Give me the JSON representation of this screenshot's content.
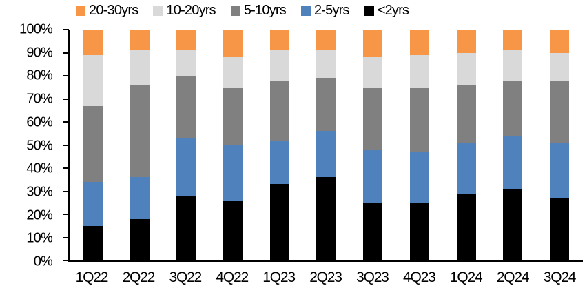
{
  "chart_data": {
    "type": "bar",
    "stacked": true,
    "stacked_mode": "percent",
    "title": "",
    "xlabel": "",
    "ylabel": "",
    "ylim": [
      0,
      100
    ],
    "y_tick_step": 10,
    "grid": false,
    "legend_position": "top",
    "background_color": "#ffffff",
    "axis_color": "#000000",
    "categories": [
      "1Q22",
      "2Q22",
      "3Q22",
      "4Q22",
      "1Q23",
      "2Q23",
      "3Q23",
      "4Q23",
      "1Q24",
      "2Q24",
      "3Q24"
    ],
    "series": [
      {
        "name": "<2yrs",
        "color": "#000000",
        "values": [
          15,
          18,
          28,
          26,
          33,
          36,
          25,
          25,
          29,
          31,
          27
        ]
      },
      {
        "name": "2-5yrs",
        "color": "#4F81BD",
        "values": [
          19,
          18,
          25,
          24,
          19,
          20,
          23,
          22,
          22,
          23,
          24
        ]
      },
      {
        "name": "5-10yrs",
        "color": "#808080",
        "values": [
          33,
          40,
          27,
          25,
          26,
          23,
          27,
          28,
          25,
          24,
          27
        ]
      },
      {
        "name": "10-20yrs",
        "color": "#D9D9D9",
        "values": [
          22,
          15,
          11,
          13,
          13,
          12,
          13,
          14,
          14,
          13,
          12
        ]
      },
      {
        "name": "20-30yrs",
        "color": "#F79646",
        "values": [
          11,
          9,
          9,
          12,
          9,
          9,
          12,
          11,
          10,
          9,
          10
        ]
      }
    ],
    "legend_order": [
      "20-30yrs",
      "10-20yrs",
      "5-10yrs",
      "2-5yrs",
      "<2yrs"
    ],
    "y_tick_labels": [
      "100%",
      "90%",
      "80%",
      "70%",
      "60%",
      "50%",
      "40%",
      "30%",
      "20%",
      "10%",
      "0%"
    ]
  }
}
